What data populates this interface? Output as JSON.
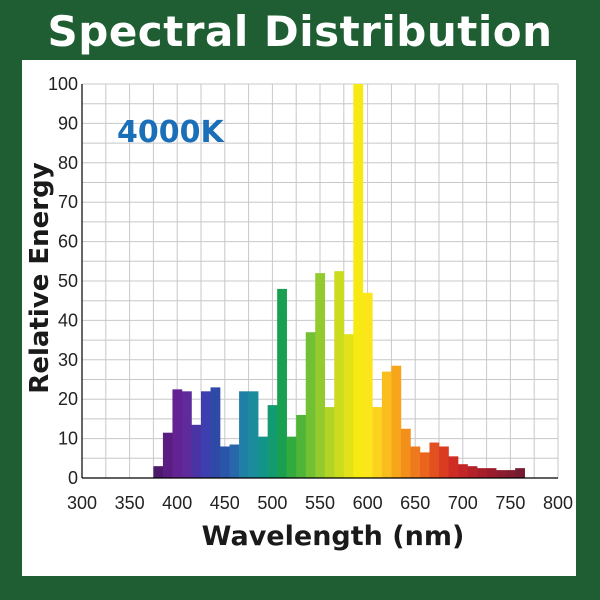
{
  "title": "Spectral Distribution",
  "colors": {
    "frame": "#1e5e32",
    "panel": "#ffffff",
    "annotation": "#1a6fb8",
    "grid": "#c8c8c8",
    "axis": "#000000"
  },
  "chart_data": {
    "type": "bar",
    "title": "Spectral Distribution",
    "annotation": "4000K",
    "xlabel": "Wavelength (nm)",
    "ylabel": "Relative Energy",
    "xlim": [
      300,
      800
    ],
    "ylim": [
      0,
      100
    ],
    "xticks": [
      "300",
      "350",
      "400",
      "450",
      "500",
      "550",
      "600",
      "650",
      "700",
      "750",
      "800"
    ],
    "yticks": [
      "0",
      "10",
      "20",
      "30",
      "40",
      "50",
      "60",
      "70",
      "80",
      "90",
      "100"
    ],
    "grid": true,
    "bin_width": 10,
    "x": [
      380,
      390,
      400,
      410,
      420,
      430,
      440,
      450,
      460,
      470,
      480,
      490,
      500,
      510,
      520,
      530,
      540,
      550,
      560,
      570,
      580,
      590,
      600,
      610,
      620,
      630,
      640,
      650,
      660,
      670,
      680,
      690,
      700,
      710,
      720,
      730,
      740,
      750,
      760
    ],
    "values": [
      3,
      11.5,
      22.5,
      22,
      13.5,
      22,
      23,
      8,
      8.5,
      22,
      22,
      10.5,
      18.5,
      48,
      10.5,
      16,
      37,
      52,
      18,
      52.5,
      36.5,
      100,
      47,
      18,
      27,
      28.5,
      12.5,
      8,
      6.5,
      9,
      8,
      5.5,
      3.5,
      3,
      2.5,
      2.5,
      2,
      2,
      2.5
    ],
    "bar_colors": [
      "#4b1a6b",
      "#5a1d82",
      "#642393",
      "#5e2a9c",
      "#4a34a4",
      "#3d3fb0",
      "#2f4aa6",
      "#2a55a8",
      "#2867aa",
      "#1f7fa4",
      "#1a8c9c",
      "#12948a",
      "#129a70",
      "#18a050",
      "#32aa3e",
      "#4fb538",
      "#72c033",
      "#93ca2e",
      "#b3d326",
      "#cbdb1e",
      "#e3e21a",
      "#f7ea12",
      "#fde51c",
      "#fbd31e",
      "#f9be1d",
      "#f7a61c",
      "#f3901c",
      "#ef7a1d",
      "#ea641e",
      "#e25020",
      "#da3c22",
      "#cf2d24",
      "#c42526",
      "#b52128",
      "#a81d2a",
      "#9a1c2c",
      "#8e1c2e",
      "#821c30",
      "#761c30"
    ]
  }
}
